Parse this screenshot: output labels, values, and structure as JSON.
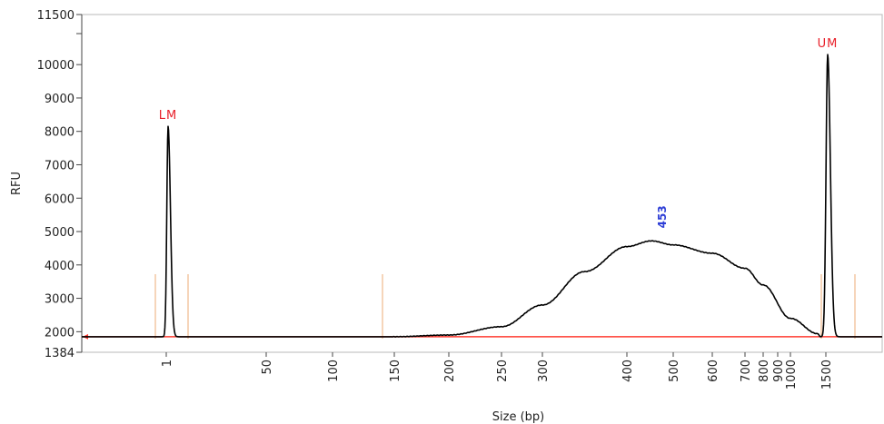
{
  "chart_data": {
    "type": "line",
    "title": "",
    "xlabel": "Size (bp)",
    "ylabel": "RFU",
    "y_ticks": [
      "1384",
      "2000",
      "3000",
      "4000",
      "5000",
      "6000",
      "7000",
      "8000",
      "9000",
      "10000",
      "11500"
    ],
    "ylim": [
      1384,
      11500
    ],
    "x_ticks": [
      "1",
      "50",
      "100",
      "150",
      "200",
      "250",
      "300",
      "400",
      "500",
      "600",
      "700",
      "800",
      "900",
      "1000",
      "1500"
    ],
    "x_tick_positions_scale": "nonlinear (electrophoresis size ladder)",
    "baseline_rfu": 1850,
    "series": [
      {
        "values": [
          {
            "x": 1,
            "y": 1850
          },
          {
            "x": 1,
            "y": 8150
          },
          {
            "x": 150,
            "y": 1850
          },
          {
            "x": 200,
            "y": 1900
          },
          {
            "x": 250,
            "y": 2150
          },
          {
            "x": 300,
            "y": 2800
          },
          {
            "x": 350,
            "y": 3800
          },
          {
            "x": 400,
            "y": 4550
          },
          {
            "x": 453,
            "y": 4720
          },
          {
            "x": 500,
            "y": 4600
          },
          {
            "x": 600,
            "y": 4350
          },
          {
            "x": 700,
            "y": 3900
          },
          {
            "x": 800,
            "y": 3400
          },
          {
            "x": 1000,
            "y": 2400
          },
          {
            "x": 1500,
            "y": 10300
          }
        ]
      }
    ],
    "annotations": [
      {
        "text": "LM",
        "x": 1,
        "y": 8150,
        "color": "#e8202a"
      },
      {
        "text": "UM",
        "x": 1500,
        "y": 10300,
        "color": "#e8202a"
      },
      {
        "text": "453",
        "x": 453,
        "y": 4720,
        "color": "#2f3fd6"
      }
    ],
    "colors": {
      "trace": "#000000",
      "baseline": "#ff3b30",
      "markers": "#e8202a",
      "peak_label": "#2f3fd6",
      "boundary_lines": "#f2c39c"
    }
  }
}
